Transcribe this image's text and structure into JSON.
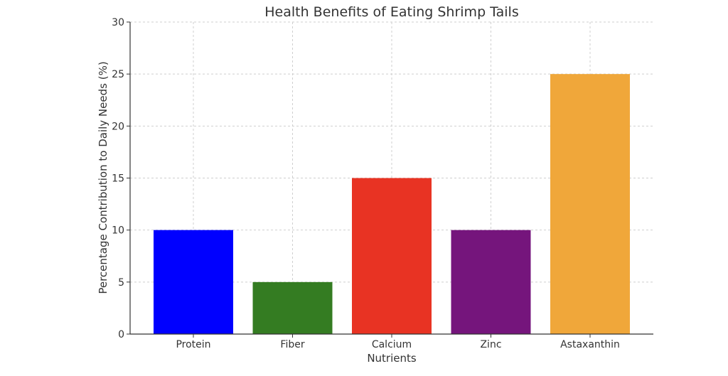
{
  "chart_data": {
    "type": "bar",
    "title": "Health Benefits of Eating Shrimp Tails",
    "xlabel": "Nutrients",
    "ylabel": "Percentage Contribution to Daily Needs (%)",
    "categories": [
      "Protein",
      "Fiber",
      "Calcium",
      "Zinc",
      "Astaxanthin"
    ],
    "values": [
      10,
      5,
      15,
      10,
      25
    ],
    "colors": [
      "#0000ff",
      "#347c22",
      "#e83323",
      "#75157c",
      "#f0a73a"
    ],
    "ylim": [
      0,
      30
    ],
    "yticks": [
      0,
      5,
      10,
      15,
      20,
      25,
      30
    ],
    "grid": true
  }
}
